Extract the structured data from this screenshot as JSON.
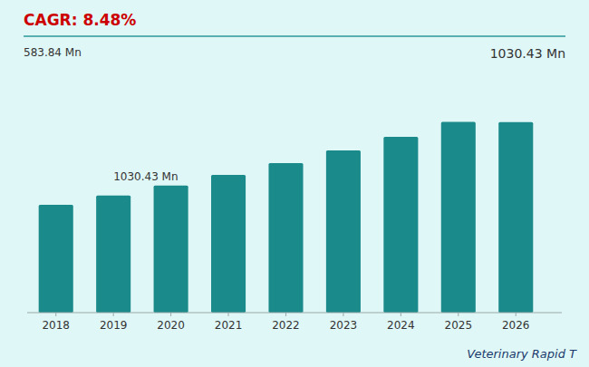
{
  "chart_data": {
    "type": "bar",
    "title": "Veterinary Rapid T",
    "x": [
      2018,
      2019,
      2020,
      2021,
      2022,
      2023,
      2024,
      2025,
      2026
    ],
    "values": [
      583.84,
      633.32,
      686.98,
      745.23,
      808.46,
      876.99,
      951.25,
      1031.87,
      1030.43
    ],
    "color": "#1a8a8a",
    "xlim": [
      2017.5,
      2026.8
    ],
    "xticks": [
      2018,
      2019,
      2020,
      2021,
      2022,
      2023,
      2024,
      2025,
      2026
    ],
    "ylim": [
      0,
      1250
    ],
    "grid": false,
    "tick_labels": "x",
    "annotations": [
      {
        "text": "CAGR: 8.48%",
        "color": "#cc0000"
      },
      {
        "text": "583.84 Mn"
      },
      {
        "text": "1030.43 Mn"
      },
      {
        "text": "1030.43 Mn",
        "x": 2019
      }
    ]
  }
}
